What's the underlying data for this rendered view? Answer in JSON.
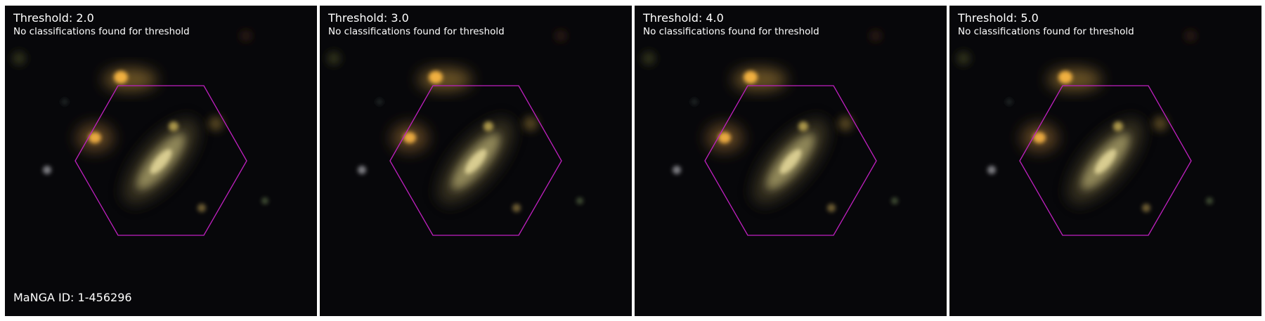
{
  "panels": [
    {
      "title": "Threshold: 2.0",
      "message": "No classifications found for threshold"
    },
    {
      "title": "Threshold: 3.0",
      "message": "No classifications found for threshold"
    },
    {
      "title": "Threshold: 4.0",
      "message": "No classifications found for threshold"
    },
    {
      "title": "Threshold: 5.0",
      "message": "No classifications found for threshold"
    }
  ],
  "manga_id_label": "MaNGA ID: 1-456296",
  "colors": {
    "background": "#07070a",
    "hexagon": "#c020c0",
    "galaxy_core": "#d8cc90",
    "companion": "#f0b040"
  }
}
